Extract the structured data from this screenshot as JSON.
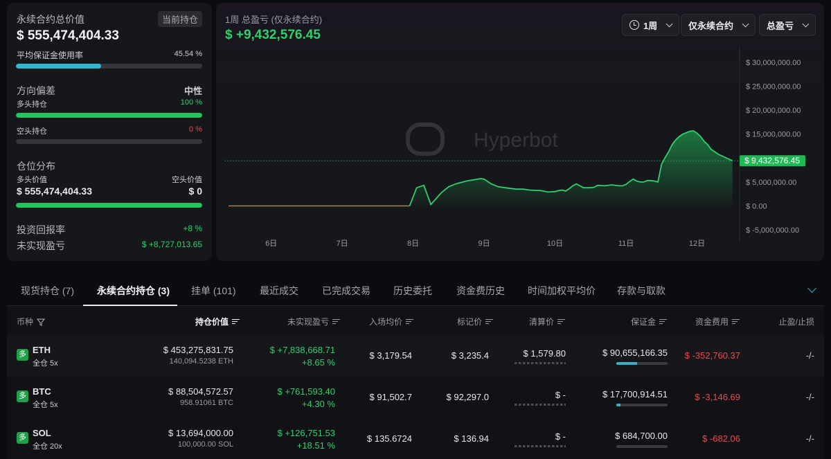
{
  "summary": {
    "total_label": "永续合约总价值",
    "badge": "当前持仓",
    "total_value": "$ 555,474,404.33",
    "margin_label": "平均保证金使用率",
    "margin_pct": "45.54 %",
    "margin_fraction": 0.4554,
    "direction_label": "方向偏差",
    "direction_value": "中性",
    "long_label": "多头持仓",
    "long_pct": "100 %",
    "long_fraction": 1.0,
    "short_label": "空头持仓",
    "short_pct": "0 %",
    "short_fraction": 0.0,
    "dist_label": "仓位分布",
    "long_value_label": "多头价值",
    "short_value_label": "空头价值",
    "long_value": "$ 555,474,404.33",
    "short_value": "$ 0",
    "dist_fraction": 1.0,
    "roi_label": "投资回报率",
    "roi_value": "+8 %",
    "upnl_label": "未实现盈亏",
    "upnl_value": "$ +8,727,013.65"
  },
  "chart_header": {
    "title": "1周 总盈亏 (仅永续合约)",
    "value": "$ +9,432,576.45",
    "period": "1周",
    "scope": "仅永续合约",
    "metric": "总盈亏",
    "watermark": "Hyperbot"
  },
  "chart_data": {
    "type": "area",
    "x_ticks": [
      "6日",
      "7日",
      "8日",
      "9日",
      "10日",
      "11日",
      "12日"
    ],
    "y_ticks": [
      "$ 30,000,000.00",
      "$ 25,000,000.00",
      "$ 20,000,000.00",
      "$ 15,000,000.00",
      "$ 10,000,000.00",
      "$ 5,000,000.00",
      "$ 0.00",
      "$ -5,000,000.00"
    ],
    "ylim": [
      -5000000,
      30000000
    ],
    "xlim": [
      5.34,
      12.6
    ],
    "current_value": 9432576.45,
    "current_label": "$ 9,432,576.45",
    "series": [
      {
        "x": [
          5.4,
          6.2,
          7.0,
          7.9,
          7.95,
          8.05,
          8.15,
          8.25,
          8.4,
          8.5,
          8.6,
          8.75,
          8.95,
          9.0,
          9.1,
          9.2,
          9.3,
          9.45,
          9.55,
          9.65,
          9.8,
          9.9,
          10.0,
          10.05,
          10.1,
          10.15,
          10.2,
          10.25,
          10.3,
          10.4,
          10.5,
          10.55,
          10.6,
          10.7,
          10.8,
          10.9,
          10.95,
          11.0,
          11.05,
          11.1,
          11.15,
          11.2,
          11.25,
          11.3,
          11.35,
          11.4,
          11.45,
          11.5,
          11.55,
          11.6,
          11.65,
          11.7,
          11.75,
          11.8,
          11.85,
          11.9,
          11.95,
          12.0,
          12.05,
          12.1,
          12.15,
          12.2,
          12.3,
          12.4,
          12.5
        ],
        "y": [
          0,
          0,
          0,
          0,
          0,
          3800,
          4300,
          300,
          2800,
          4000,
          4600,
          5200,
          5700,
          5600,
          4600,
          4000,
          3800,
          3500,
          3500,
          3300,
          3200,
          2900,
          3000,
          3200,
          3300,
          3100,
          3600,
          4200,
          4600,
          3800,
          3800,
          3900,
          4300,
          4200,
          4400,
          4200,
          4200,
          4500,
          5100,
          5600,
          5200,
          5000,
          5000,
          5300,
          5300,
          5200,
          5000,
          8700,
          10100,
          11300,
          12800,
          13800,
          14500,
          15000,
          15300,
          15600,
          15700,
          15200,
          14500,
          13500,
          12800,
          11800,
          10800,
          10100,
          9432.58
        ],
        "scale": 1000
      }
    ]
  },
  "tabs": [
    "现货持仓 (7)",
    "永续合约持仓 (3)",
    "挂单 (101)",
    "最近成交",
    "已完成交易",
    "历史委托",
    "资金费历史",
    "时间加权平均价",
    "存款与取款"
  ],
  "columns": [
    "币种",
    "持仓价值",
    "未实现盈亏",
    "入场均价",
    "标记价",
    "清算价",
    "保证金",
    "资金费用",
    "止盈/止损"
  ],
  "rows": [
    {
      "side": "多",
      "coin": "ETH",
      "mode": "全仓 5x",
      "value": "$ 453,275,831.75",
      "size": "140,094.5238 ETH",
      "upnl": "$ +7,838,668.71",
      "upnl_pct": "+8.65 %",
      "entry": "$ 3,179.54",
      "mark": "$ 3,235.4",
      "liq": "$ 1,579.80",
      "margin": "$ 90,655,166.35",
      "margin_fill": 0.4,
      "funding": "$ -352,760.37",
      "tpsl": "-/-"
    },
    {
      "side": "多",
      "coin": "BTC",
      "mode": "全仓 5x",
      "value": "$ 88,504,572.57",
      "size": "958.91061 BTC",
      "upnl": "$ +761,593.40",
      "upnl_pct": "+4.30 %",
      "entry": "$ 91,502.7",
      "mark": "$ 92,297.0",
      "liq": "$ -",
      "margin": "$ 17,700,914.51",
      "margin_fill": 0.08,
      "funding": "$ -3,146.69",
      "tpsl": "-/-"
    },
    {
      "side": "多",
      "coin": "SOL",
      "mode": "全仓 20x",
      "value": "$ 13,694,000.00",
      "size": "100,000.00 SOL",
      "upnl": "$ +126,751.53",
      "upnl_pct": "+18.51 %",
      "entry": "$ 135.6724",
      "mark": "$ 136.94",
      "liq": "$ -",
      "margin": "$ 684,700.00",
      "margin_fill": 0.0,
      "funding": "$ -682.06",
      "tpsl": "-/-"
    }
  ],
  "colors": {
    "positive": "#2fd06b",
    "negative": "#f2474a",
    "accent": "#3ab0c8"
  }
}
